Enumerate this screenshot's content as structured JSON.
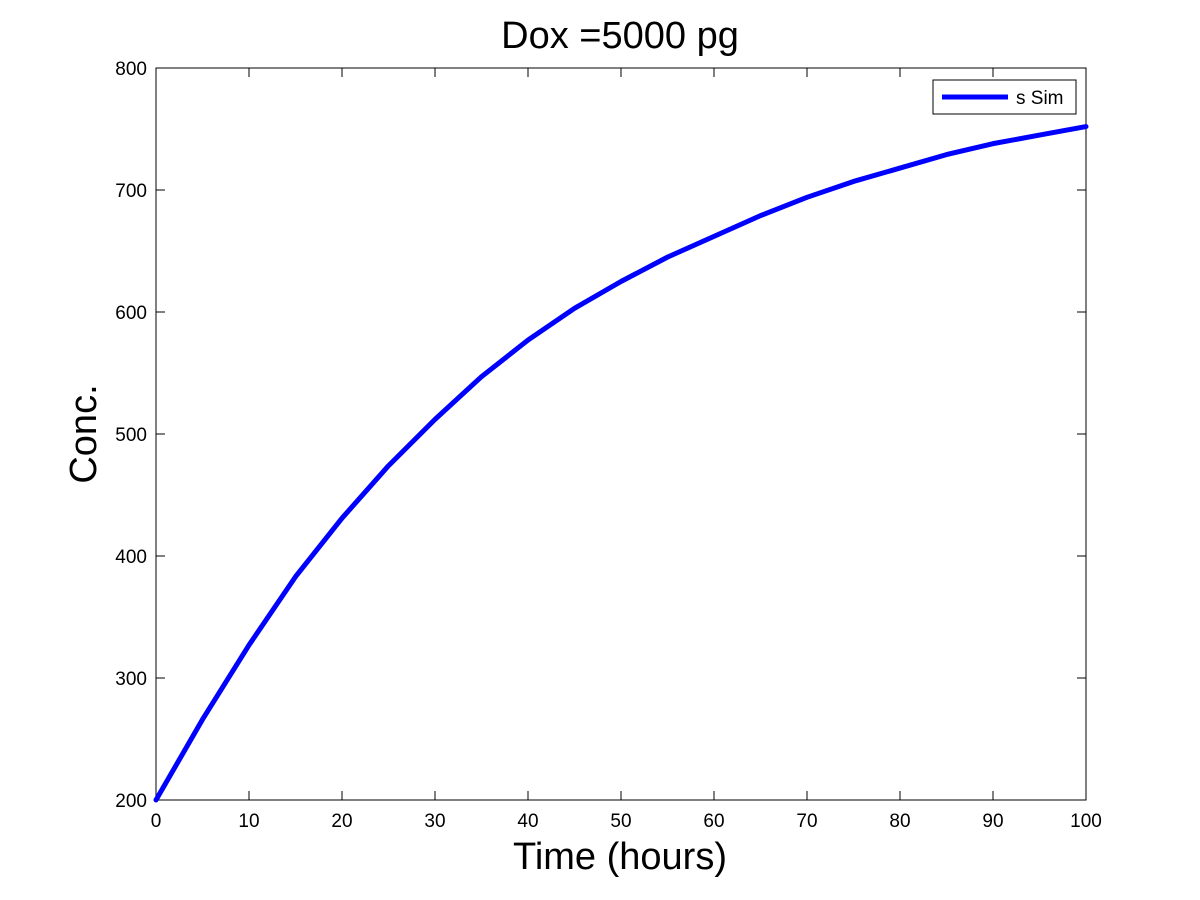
{
  "chart_data": {
    "type": "line",
    "title": "Dox =5000 pg",
    "xlabel": "Time (hours)",
    "ylabel": "Conc.",
    "xlim": [
      0,
      100
    ],
    "ylim": [
      200,
      800
    ],
    "xticks": [
      "0",
      "10",
      "20",
      "30",
      "40",
      "50",
      "60",
      "70",
      "80",
      "90",
      "100"
    ],
    "yticks": [
      "200",
      "300",
      "400",
      "500",
      "600",
      "700",
      "800"
    ],
    "grid": false,
    "legend_position": "top-right",
    "series": [
      {
        "name": "s Sim",
        "color": "#0000ff",
        "x": [
          0,
          5,
          10,
          15,
          20,
          25,
          30,
          35,
          40,
          45,
          50,
          55,
          60,
          65,
          70,
          75,
          80,
          85,
          90,
          95,
          100
        ],
        "y": [
          200,
          266,
          327,
          383,
          431,
          474,
          512,
          547,
          577,
          603,
          625,
          645,
          662,
          679,
          694,
          707,
          718,
          729,
          738,
          745,
          752
        ]
      }
    ]
  }
}
